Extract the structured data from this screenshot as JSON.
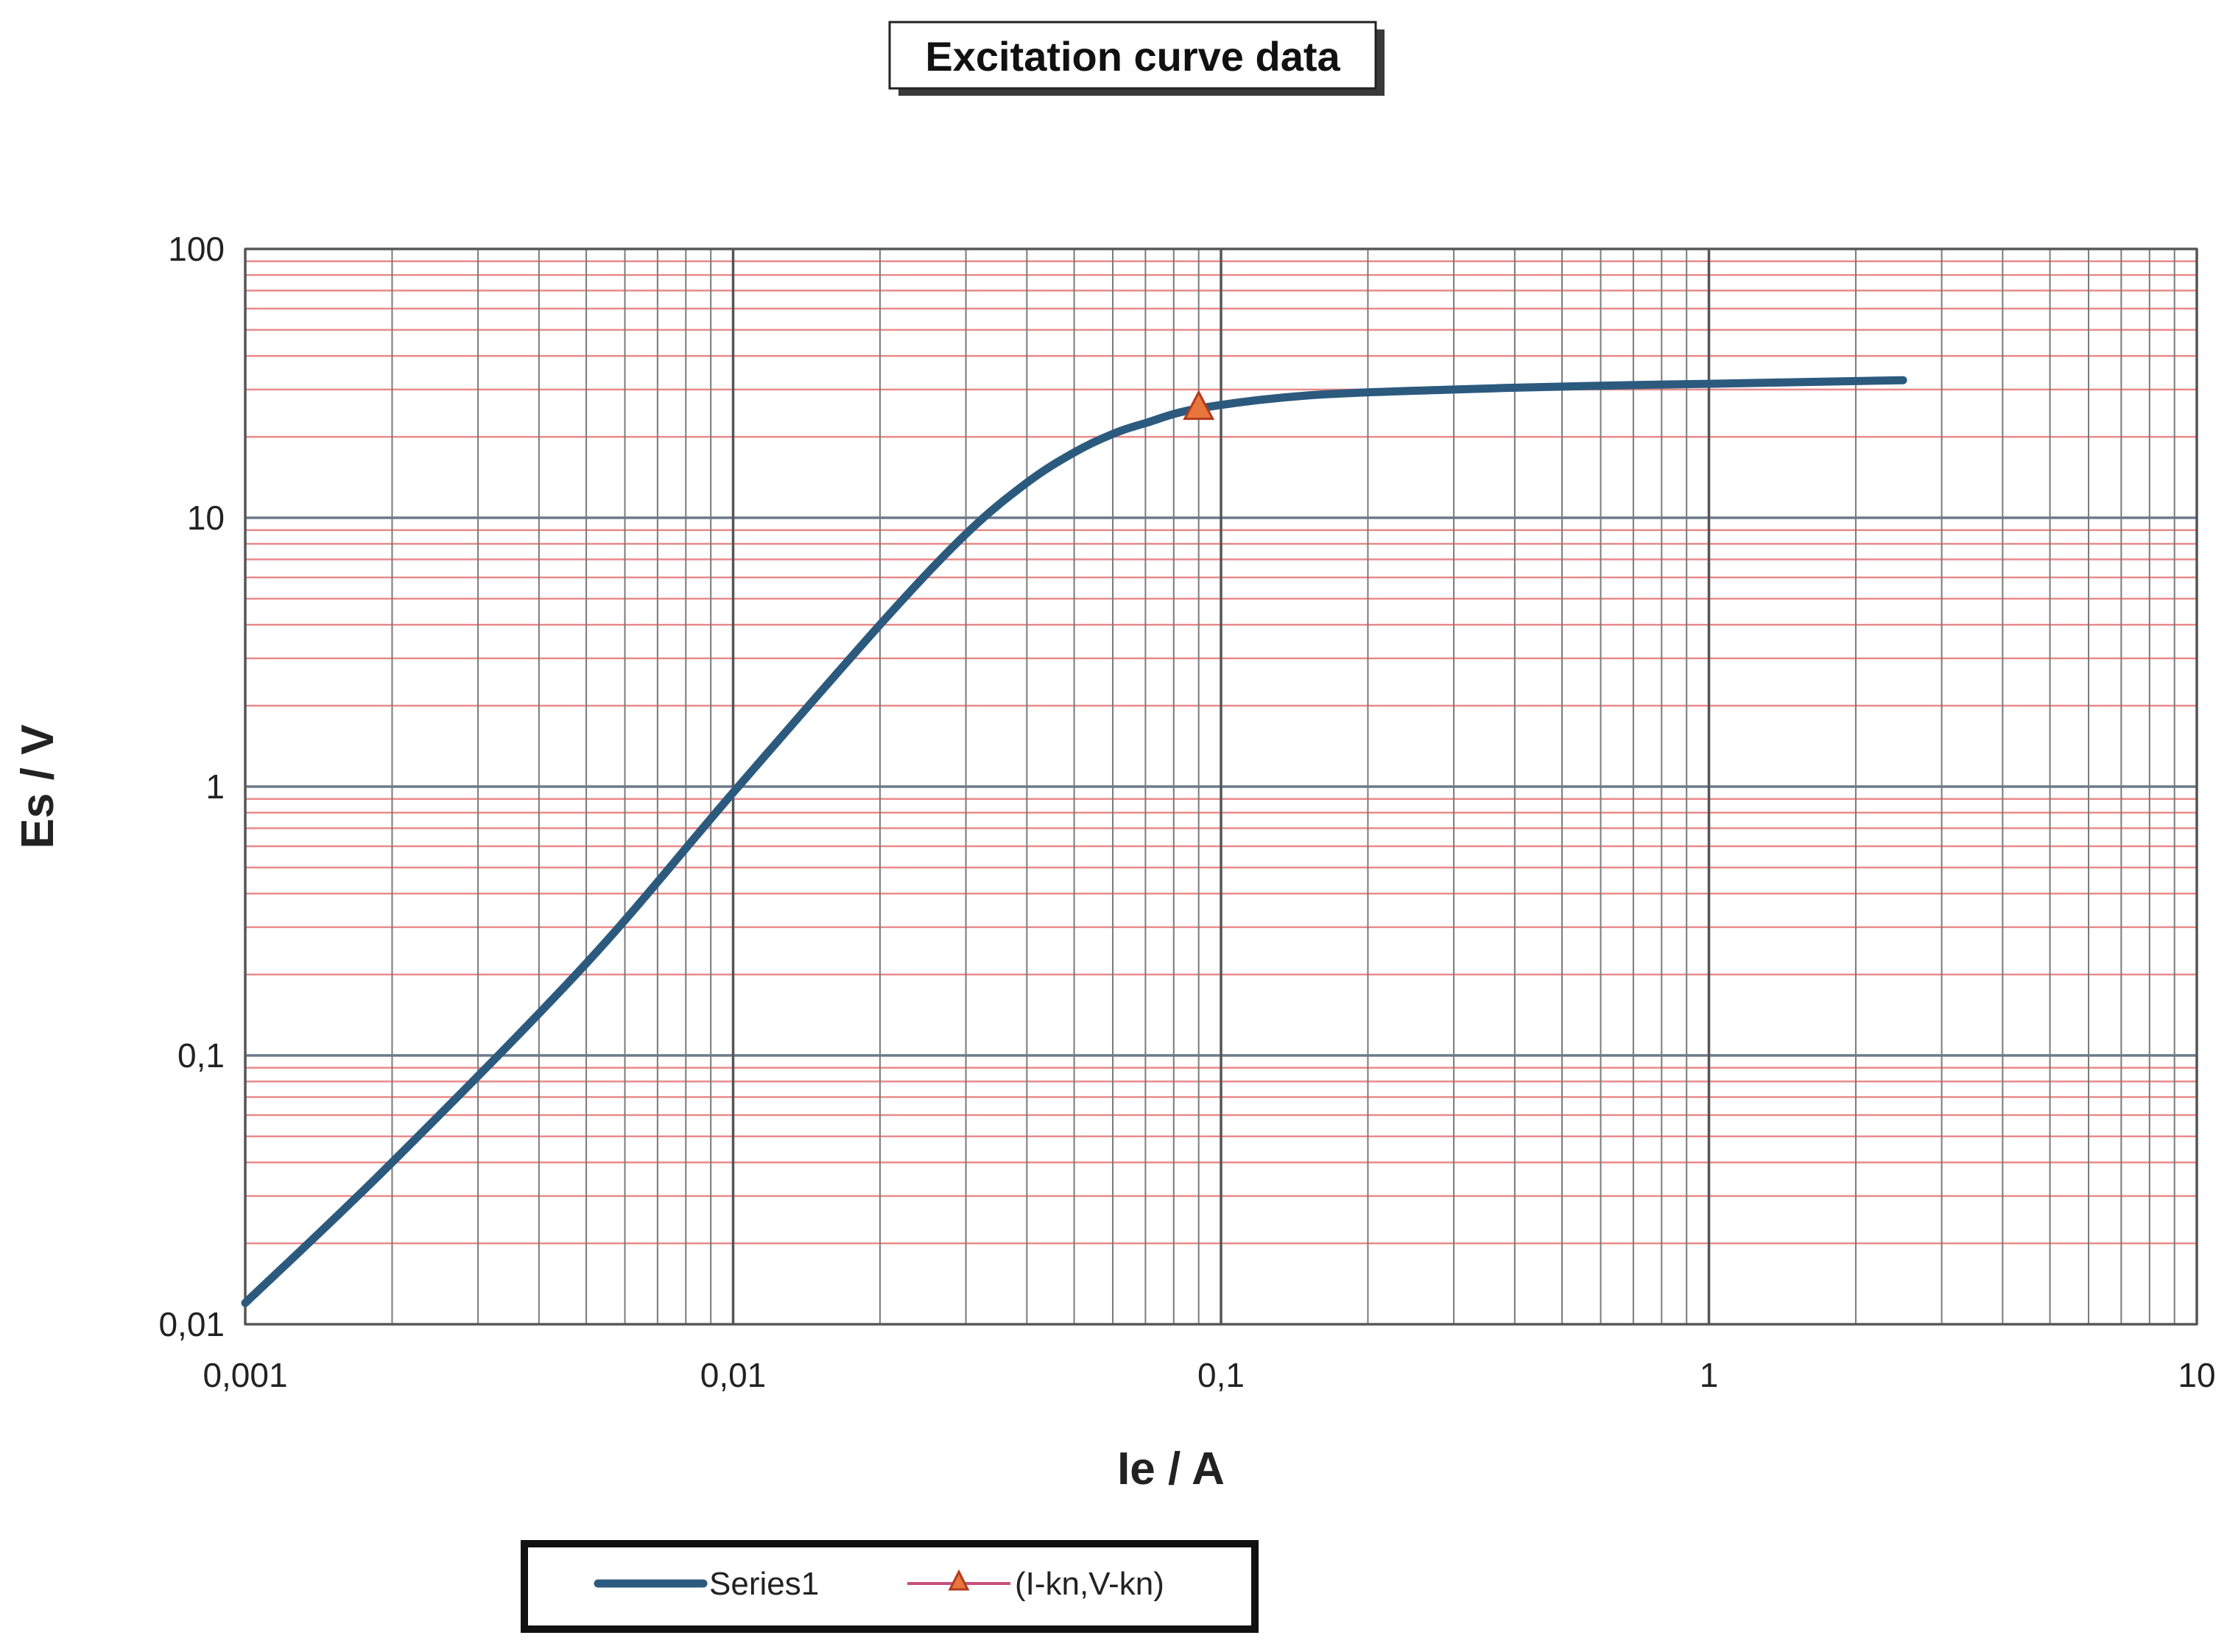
{
  "chart_data": {
    "type": "line",
    "title": "Excitation curve data",
    "xlabel": "Ie / A",
    "ylabel": "Es / V",
    "xscale": "log",
    "yscale": "log",
    "xlim": [
      0.001,
      10
    ],
    "ylim": [
      0.01,
      100
    ],
    "x_tick_labels": [
      "0,001",
      "0,01",
      "0,1",
      "1",
      "10"
    ],
    "y_tick_labels": [
      "0,01",
      "0,1",
      "1",
      "10",
      "100"
    ],
    "grid": true,
    "legend_position": "bottom-left",
    "series": [
      {
        "name": "Series1",
        "color": "#2c5a7e",
        "x": [
          0.001,
          0.002,
          0.005,
          0.01,
          0.02,
          0.03,
          0.04,
          0.05,
          0.06,
          0.07,
          0.09,
          0.15,
          0.3,
          0.6,
          1,
          2.5
        ],
        "y": [
          0.012,
          0.04,
          0.22,
          0.95,
          4,
          8.7,
          13.5,
          17.5,
          20.5,
          22.5,
          25.5,
          28.5,
          30,
          31,
          31.5,
          32.5
        ]
      },
      {
        "name": "(I-kn,V-kn)",
        "color": "#c8507a",
        "marker": "triangle",
        "marker_fill": "#e8763c",
        "x": [
          0.09
        ],
        "y": [
          25.5
        ]
      }
    ]
  }
}
